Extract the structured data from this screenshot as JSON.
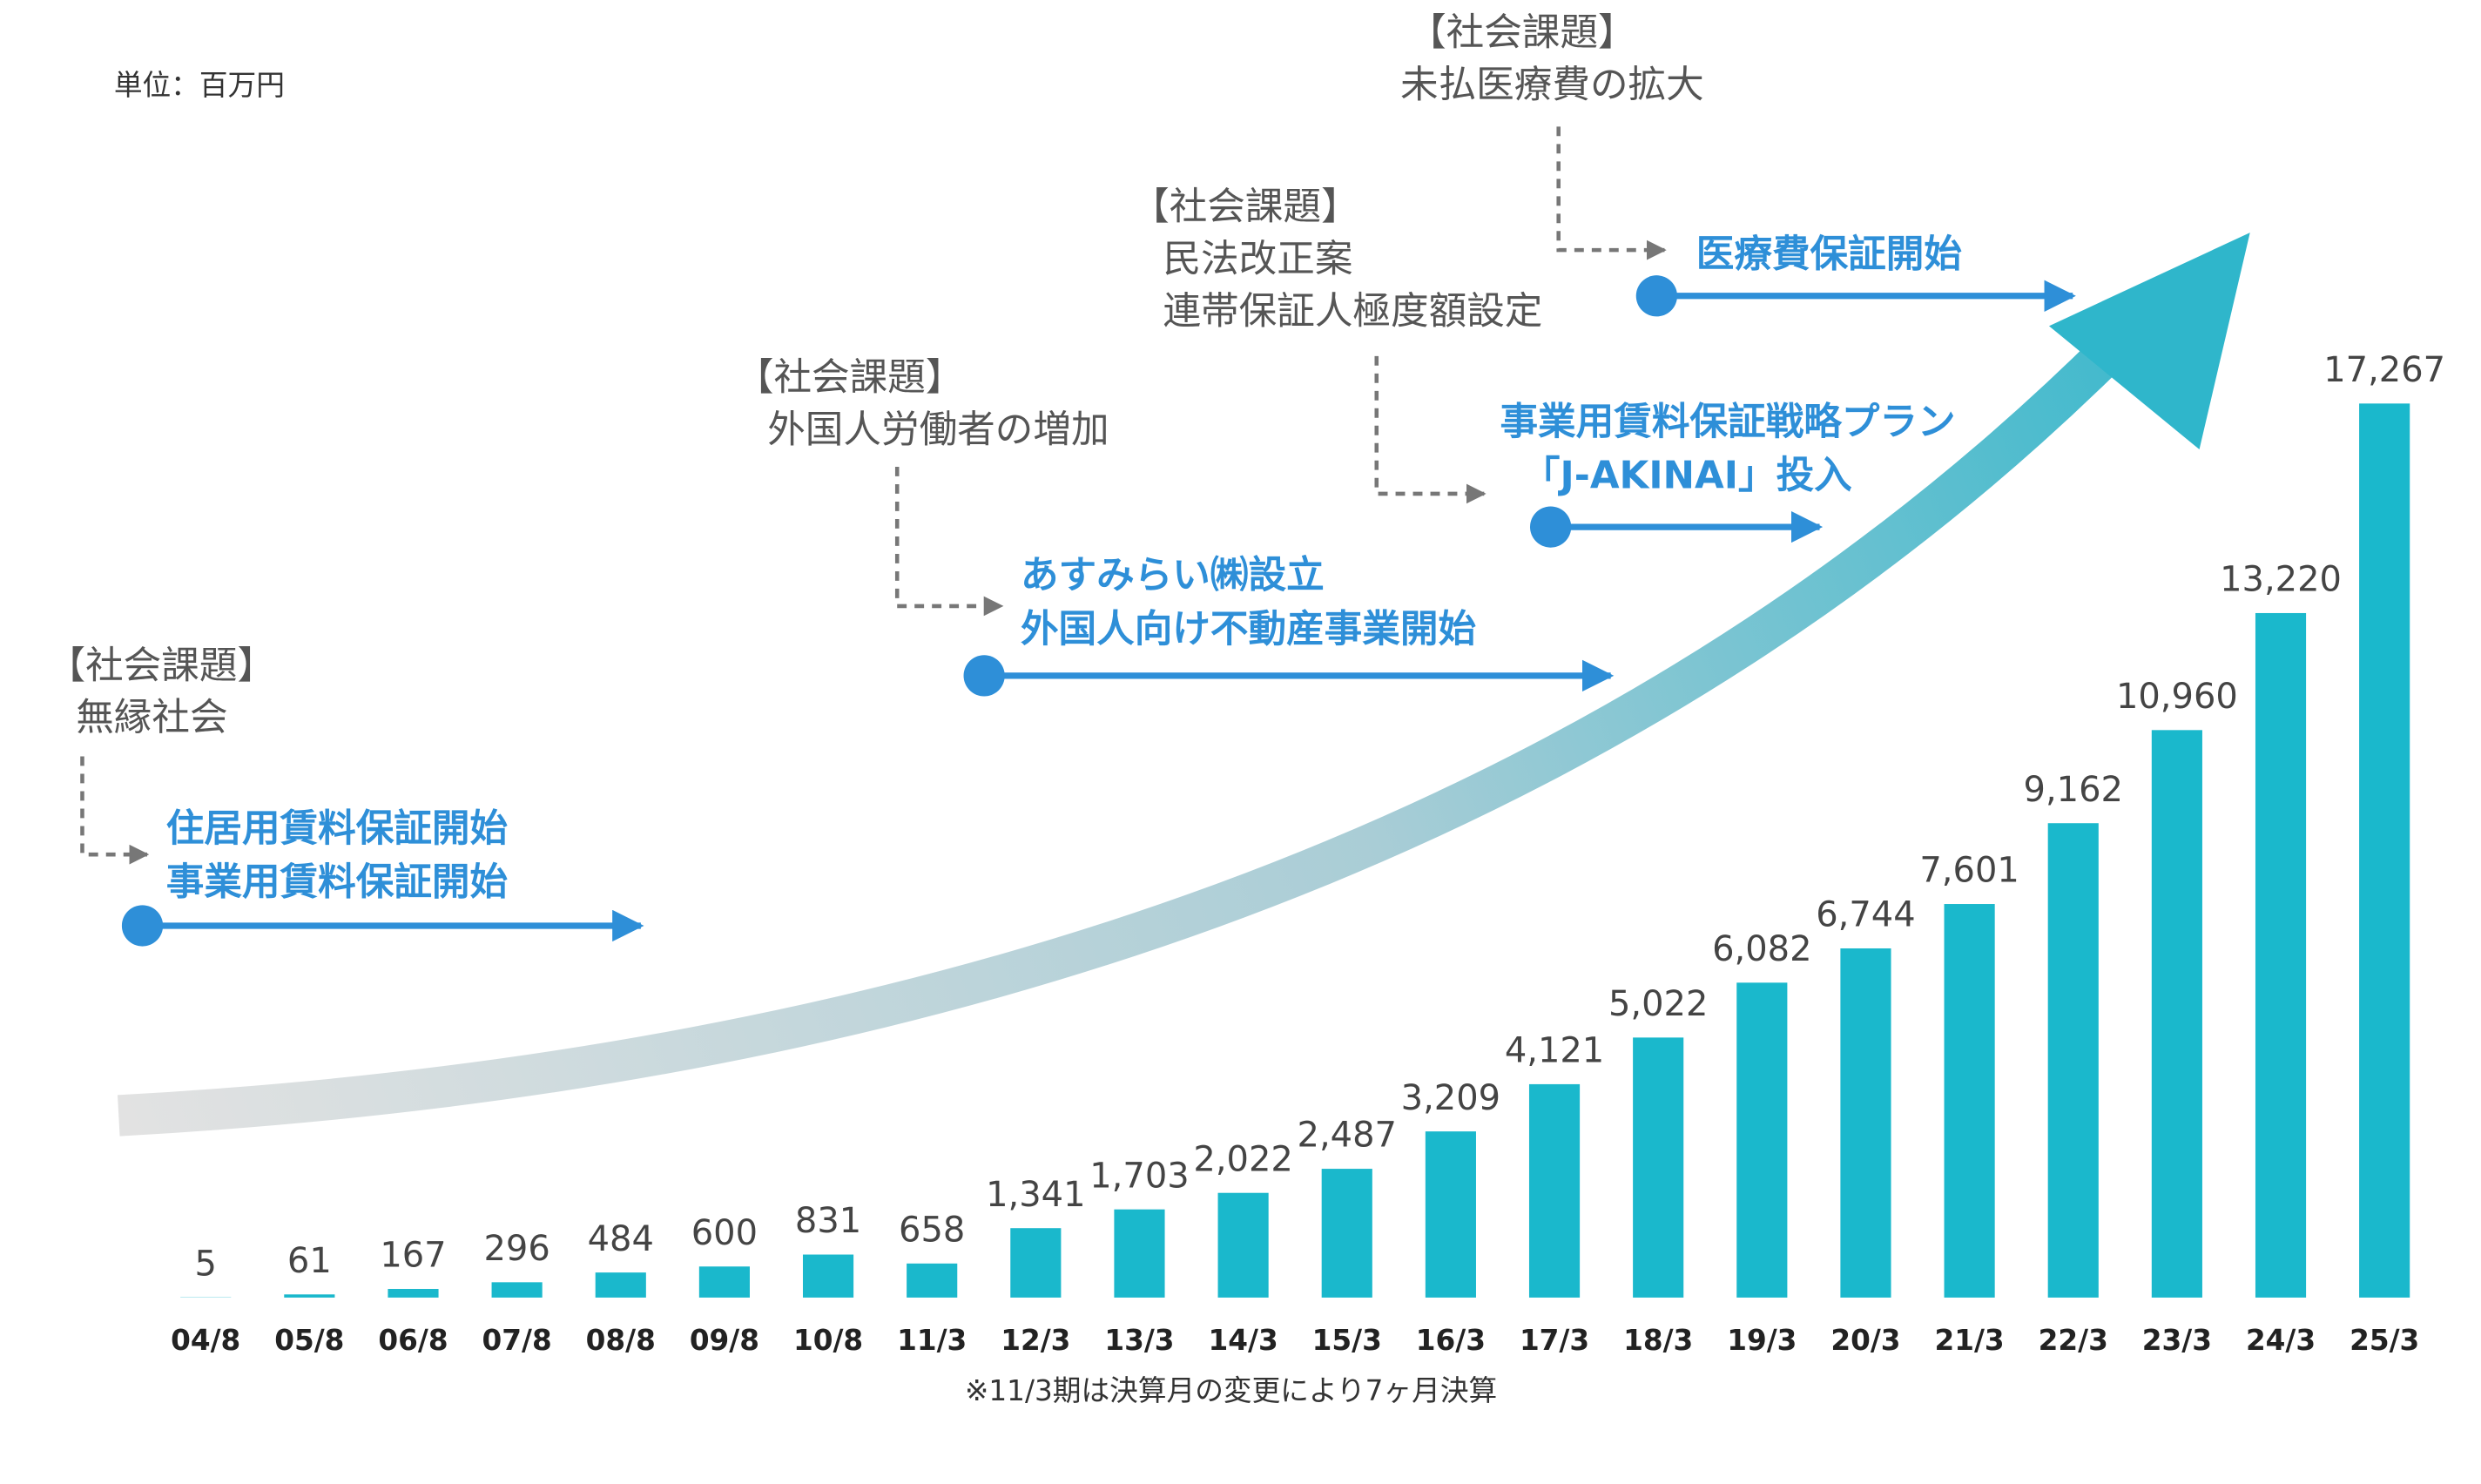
{
  "chart_data": {
    "type": "bar",
    "unit_label": "単位：百万円",
    "note": "※11/3期は決算月の変更により7ヶ月決算",
    "categories": [
      "04/8",
      "05/8",
      "06/8",
      "07/8",
      "08/8",
      "09/8",
      "10/8",
      "11/3",
      "12/3",
      "13/3",
      "14/3",
      "15/3",
      "16/3",
      "17/3",
      "18/3",
      "19/3",
      "20/3",
      "21/3",
      "22/3",
      "23/3",
      "24/3",
      "25/3"
    ],
    "values": [
      5,
      61,
      167,
      296,
      484,
      600,
      831,
      658,
      1341,
      1703,
      2022,
      2487,
      3209,
      4121,
      5022,
      6082,
      6744,
      7601,
      9162,
      10960,
      13220,
      17267
    ],
    "value_labels": [
      "5",
      "61",
      "167",
      "296",
      "484",
      "600",
      "831",
      "658",
      "1,341",
      "1,703",
      "2,022",
      "2,487",
      "3,209",
      "4,121",
      "5,022",
      "6,082",
      "6,744",
      "7,601",
      "9,162",
      "10,960",
      "13,220",
      "17,267"
    ],
    "color": "#1ab8cc",
    "annotations": [
      {
        "issue_title": "【社会課題】",
        "issue": [
          "無縁社会"
        ],
        "milestone": [
          "住居用賃料保証開始",
          "事業用賃料保証開始"
        ]
      },
      {
        "issue_title": "【社会課題】",
        "issue": [
          "外国人労働者の増加"
        ],
        "milestone": [
          "あすみらい㈱設立",
          "外国人向け不動産事業開始"
        ]
      },
      {
        "issue_title": "【社会課題】",
        "issue": [
          "民法改正案",
          "連帯保証人極度額設定"
        ],
        "milestone": [
          "事業用賃料保証戦略プラン",
          "「J-AKINAI」投入"
        ]
      },
      {
        "issue_title": "【社会課題】",
        "issue": [
          "未払医療費の拡大"
        ],
        "milestone": [
          "医療費保証開始"
        ]
      }
    ]
  }
}
